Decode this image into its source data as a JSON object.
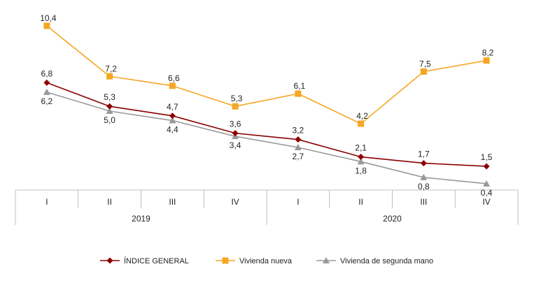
{
  "chart_data": {
    "type": "line",
    "title": "",
    "xlabel": "",
    "ylabel": "",
    "ylim": [
      0,
      11
    ],
    "grid": false,
    "legend_position": "bottom",
    "categories": [
      "I",
      "II",
      "III",
      "IV",
      "I",
      "II",
      "III",
      "IV"
    ],
    "groups": [
      {
        "label": "2019",
        "span": [
          0,
          3
        ]
      },
      {
        "label": "2020",
        "span": [
          4,
          7
        ]
      }
    ],
    "series": [
      {
        "name": "ÍNDICE GENERAL",
        "color": "#8B0000",
        "marker": "diamond",
        "values": [
          6.8,
          5.3,
          4.7,
          3.6,
          3.2,
          2.1,
          1.7,
          1.5
        ],
        "labels": [
          "6,8",
          "5,3",
          "4,7",
          "3,6",
          "3,2",
          "2,1",
          "1,7",
          "1,5"
        ]
      },
      {
        "name": "Vivienda nueva",
        "color": "#F5A623",
        "marker": "square",
        "values": [
          10.4,
          7.2,
          6.6,
          5.3,
          6.1,
          4.2,
          7.5,
          8.2
        ],
        "labels": [
          "10,4",
          "7,2",
          "6,6",
          "5,3",
          "6,1",
          "4,2",
          "7,5",
          "8,2"
        ]
      },
      {
        "name": "Vivienda de segunda mano",
        "color": "#999999",
        "marker": "triangle",
        "values": [
          6.2,
          5.0,
          4.4,
          3.4,
          2.7,
          1.8,
          0.8,
          0.4
        ],
        "labels": [
          "6,2",
          "5,0",
          "4,4",
          "3,4",
          "2,7",
          "1,8",
          "0,8",
          "0,4"
        ]
      }
    ]
  }
}
